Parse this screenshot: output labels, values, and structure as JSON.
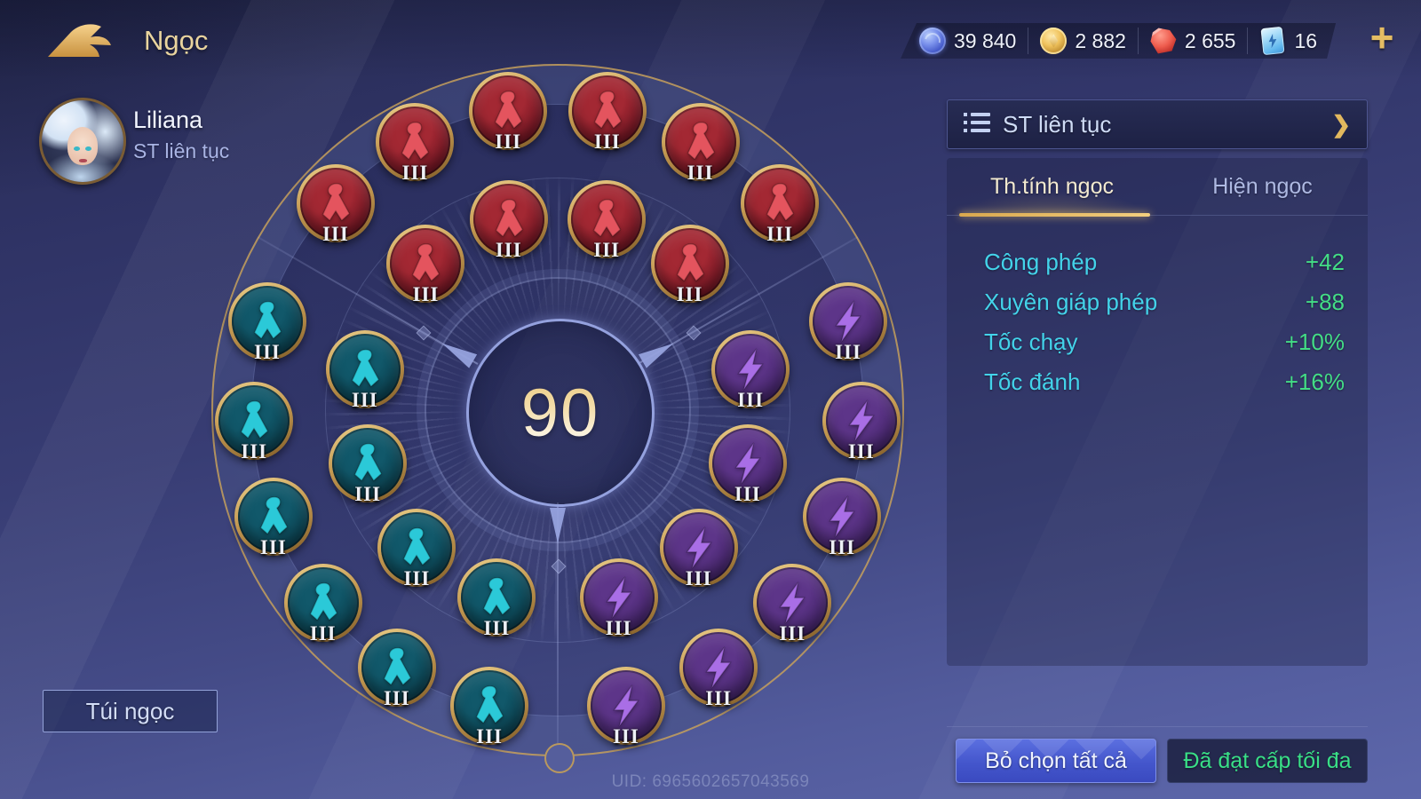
{
  "header": {
    "title": "Ngọc"
  },
  "currency_bar": {
    "items": [
      {
        "icon": "essence-orb-icon",
        "value": "39 840"
      },
      {
        "icon": "gold-coin-icon",
        "value": "2 882"
      },
      {
        "icon": "ruby-icon",
        "value": "2 655"
      },
      {
        "icon": "arcana-card-icon",
        "value": "16"
      }
    ],
    "add_button_glyph": "+"
  },
  "hero": {
    "name": "Liliana",
    "rune_page": "ST liên tục"
  },
  "wheel": {
    "level": "90",
    "tier_label": "III",
    "gem_groups": [
      {
        "name": "red",
        "symbol": "flame-rune",
        "sector_angle": -90,
        "outer_count": 6,
        "inner_count": 4,
        "color_main": "#a32833",
        "color_dark": "#5e0f1d",
        "color_symbol": "#e4545e"
      },
      {
        "name": "teal",
        "symbol": "flame-rune",
        "sector_angle": 150,
        "outer_count": 6,
        "inner_count": 4,
        "color_main": "#11586a",
        "color_dark": "#0a3947",
        "color_symbol": "#2bc9d8"
      },
      {
        "name": "purple",
        "symbol": "lightning-bolt",
        "sector_angle": 30,
        "outer_count": 6,
        "inner_count": 4,
        "color_main": "#5d3589",
        "color_dark": "#3b1f5e",
        "color_symbol": "#a96ee6"
      }
    ]
  },
  "panel": {
    "header": {
      "icon": "list-icon",
      "title": "ST liên tục",
      "chevron_glyph": "❯"
    },
    "tabs": [
      {
        "label": "Th.tính ngọc",
        "active": true
      },
      {
        "label": "Hiện ngọc",
        "active": false
      }
    ],
    "stats": [
      {
        "label": "Công phép",
        "value": "+42"
      },
      {
        "label": "Xuyên giáp phép",
        "value": "+88"
      },
      {
        "label": "Tốc chạy",
        "value": "+10%"
      },
      {
        "label": "Tốc đánh",
        "value": "+16%"
      }
    ],
    "deselect_button": "Bỏ chọn tất cả",
    "max_level_button": "Đã đạt cấp tối đa",
    "colors": {
      "stat_label": "#43d3ea",
      "stat_value": "#43dd86",
      "accent_gold": "#e7c169",
      "max_button_text": "#39df87"
    }
  },
  "footer": {
    "bag_button": "Túi ngọc",
    "uid": "UID: 6965602657043569"
  }
}
